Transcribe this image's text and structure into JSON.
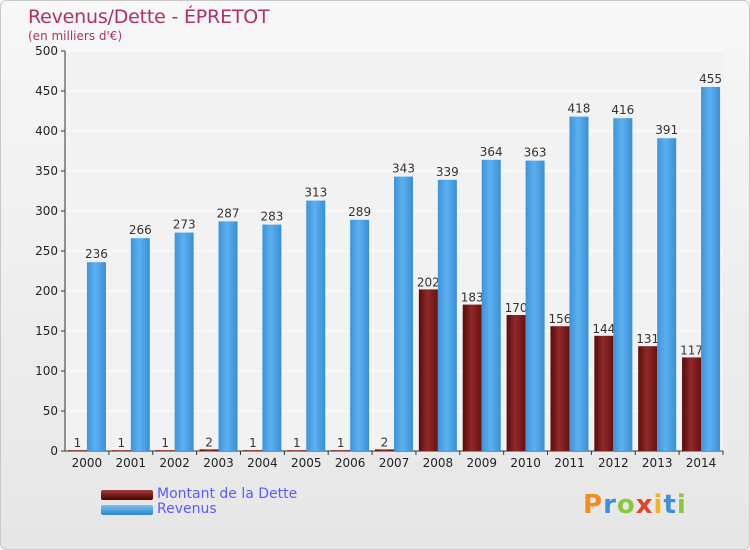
{
  "header": {
    "title": "Revenus/Dette - ÉPRETOT",
    "subtitle": "(en milliers d'€)"
  },
  "legend": {
    "items": [
      {
        "label": "Montant de la Dette",
        "color": "#7a1a1a"
      },
      {
        "label": "Revenus",
        "color": "#4aa3e6"
      }
    ]
  },
  "logo": {
    "text": "Proxiti",
    "letter_colors": [
      "#f28c1e",
      "#3d8fd9",
      "#8cc63f",
      "#e2432a",
      "#f2b21e",
      "#3d8fd9",
      "#8cc63f"
    ]
  },
  "chart_data": {
    "type": "bar",
    "categories": [
      "2000",
      "2001",
      "2002",
      "2003",
      "2004",
      "2005",
      "2006",
      "2007",
      "2008",
      "2009",
      "2010",
      "2011",
      "2012",
      "2013",
      "2014"
    ],
    "series": [
      {
        "name": "Montant de la Dette",
        "color": "#7a1a1a",
        "values": [
          1,
          1,
          1,
          2,
          1,
          1,
          1,
          2,
          202,
          183,
          170,
          156,
          144,
          131,
          117
        ]
      },
      {
        "name": "Revenus",
        "color": "#4aa3e6",
        "values": [
          236,
          266,
          273,
          287,
          283,
          313,
          289,
          343,
          339,
          364,
          363,
          418,
          416,
          391,
          455
        ]
      }
    ],
    "title": "Revenus/Dette - ÉPRETOT",
    "ylabel": "(en milliers d'€)",
    "ylim": [
      0,
      500
    ],
    "yticks": [
      0,
      50,
      100,
      150,
      200,
      250,
      300,
      350,
      400,
      450,
      500
    ],
    "grid": true
  }
}
